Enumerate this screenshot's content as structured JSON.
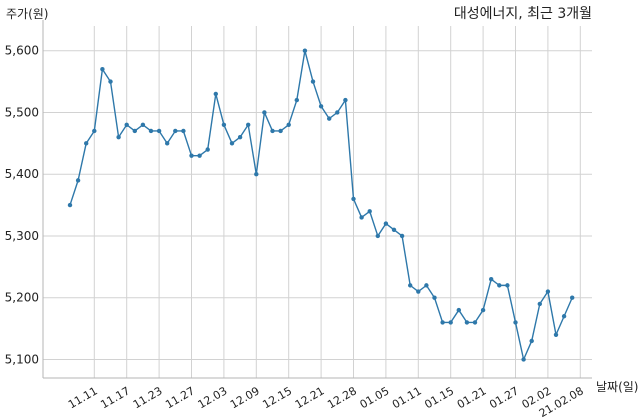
{
  "chart_data": {
    "type": "line",
    "title": "대성에너지, 최근 3개월",
    "ylabel": "주가(원)",
    "xlabel": "날짜(일)",
    "ylim": [
      5070,
      5640
    ],
    "yticks": [
      5100,
      5200,
      5300,
      5400,
      5500,
      5600
    ],
    "ytick_labels": [
      "5,100",
      "5,200",
      "5,300",
      "5,400",
      "5,500",
      "5,600"
    ],
    "xtick_labels": [
      "11.11",
      "11.17",
      "11.23",
      "11.27",
      "12.03",
      "12.09",
      "12.15",
      "12.21",
      "12.28",
      "01.05",
      "01.11",
      "01.15",
      "01.21",
      "01.27",
      "02.02",
      "21.02.08"
    ],
    "xtick_positions": [
      3,
      7,
      11,
      15,
      19,
      23,
      27,
      31,
      35,
      39,
      43,
      47,
      51,
      55,
      59,
      63
    ],
    "grid": true,
    "line_color": "#2e78aa",
    "series": [
      {
        "values": [
          5350,
          5390,
          5450,
          5470,
          5570,
          5550,
          5460,
          5480,
          5470,
          5480,
          5470,
          5470,
          5450,
          5470,
          5470,
          5430,
          5430,
          5440,
          5530,
          5480,
          5450,
          5460,
          5480,
          5400,
          5500,
          5470,
          5470,
          5480,
          5520,
          5600,
          5550,
          5510,
          5490,
          5500,
          5520,
          5360,
          5330,
          5340,
          5300,
          5320,
          5310,
          5300,
          5220,
          5210,
          5220,
          5200,
          5160,
          5160,
          5180,
          5160,
          5160,
          5180,
          5230,
          5220,
          5220,
          5160,
          5100,
          5130,
          5190,
          5210,
          5140,
          5170,
          5200
        ]
      }
    ]
  }
}
